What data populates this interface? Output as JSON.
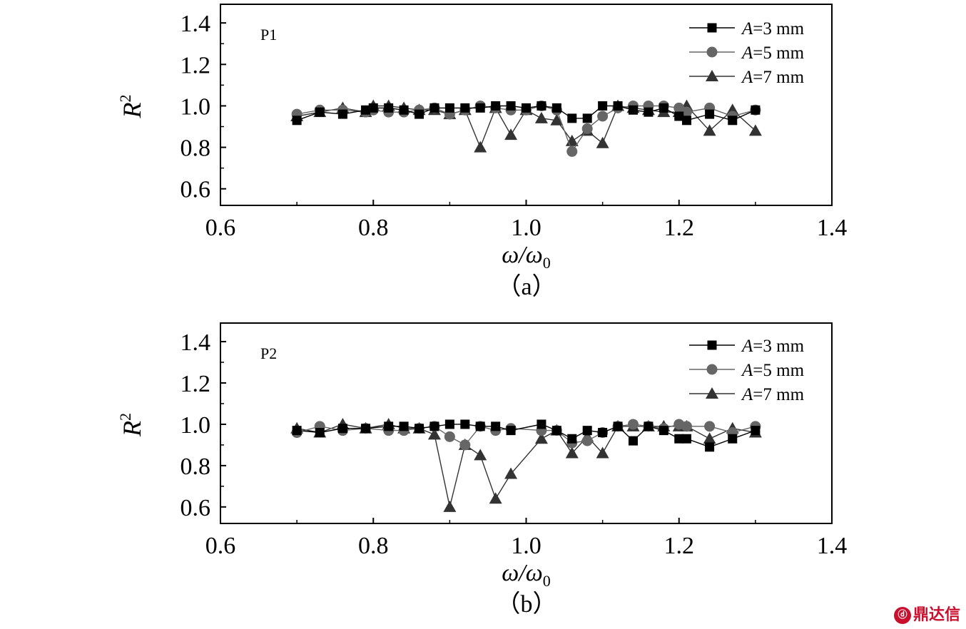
{
  "chart_data": [
    {
      "type": "line",
      "panel_label": "P1",
      "caption_open": "（",
      "caption_letter": "a",
      "caption_close": "）",
      "xlabel_main": "ω/ω",
      "xlabel_sub": "0",
      "ylabel_main": "R",
      "ylabel_sup": "2",
      "xlim": [
        0.6,
        1.4
      ],
      "ylim": [
        0.52,
        1.49
      ],
      "xticks": [
        0.6,
        0.8,
        1.0,
        1.2,
        1.4
      ],
      "xtick_labels": [
        "0.6",
        "0.8",
        "1.0",
        "1.2",
        "1.4"
      ],
      "yticks": [
        0.6,
        0.8,
        1.0,
        1.2,
        1.4
      ],
      "ytick_labels": [
        "0.6",
        "0.8",
        "1.0",
        "1.2",
        "1.4"
      ],
      "legend_position": "top-right",
      "series": [
        {
          "name_var": "A",
          "name_rest": "=3 mm",
          "marker": "square",
          "color": "#000000",
          "x": [
            0.7,
            0.73,
            0.76,
            0.79,
            0.8,
            0.82,
            0.84,
            0.86,
            0.88,
            0.9,
            0.92,
            0.94,
            0.96,
            0.98,
            1.0,
            1.02,
            1.04,
            1.06,
            1.08,
            1.1,
            1.12,
            1.14,
            1.16,
            1.18,
            1.2,
            1.21,
            1.24,
            1.27,
            1.3
          ],
          "y": [
            0.93,
            0.97,
            0.96,
            0.98,
            0.99,
            0.99,
            0.98,
            0.96,
            0.99,
            0.99,
            0.99,
            0.99,
            1.0,
            1.0,
            0.99,
            1.0,
            0.99,
            0.94,
            0.94,
            1.0,
            1.0,
            0.98,
            0.97,
            0.99,
            0.95,
            0.93,
            0.96,
            0.93,
            0.98
          ]
        },
        {
          "name_var": "A",
          "name_rest": "=5 mm",
          "marker": "circle",
          "color": "#666666",
          "x": [
            0.7,
            0.73,
            0.76,
            0.79,
            0.8,
            0.82,
            0.84,
            0.86,
            0.88,
            0.9,
            0.92,
            0.94,
            0.96,
            0.98,
            1.0,
            1.02,
            1.04,
            1.06,
            1.08,
            1.1,
            1.12,
            1.14,
            1.16,
            1.18,
            1.2,
            1.21,
            1.24,
            1.27,
            1.3
          ],
          "y": [
            0.96,
            0.98,
            0.98,
            0.97,
            0.98,
            0.97,
            0.97,
            0.98,
            0.99,
            0.96,
            0.98,
            1.0,
            0.99,
            0.98,
            0.98,
            1.0,
            0.98,
            0.78,
            0.89,
            0.95,
            0.99,
            1.0,
            1.0,
            1.0,
            0.99,
            0.97,
            0.99,
            0.95,
            0.98
          ]
        },
        {
          "name_var": "A",
          "name_rest": "=7 mm",
          "marker": "triangle",
          "color": "#333333",
          "x": [
            0.7,
            0.73,
            0.76,
            0.79,
            0.8,
            0.82,
            0.84,
            0.86,
            0.88,
            0.9,
            0.92,
            0.94,
            0.96,
            0.98,
            1.0,
            1.02,
            1.04,
            1.06,
            1.08,
            1.1,
            1.12,
            1.14,
            1.16,
            1.18,
            1.2,
            1.21,
            1.24,
            1.27,
            1.3
          ],
          "y": [
            0.95,
            0.97,
            0.99,
            0.97,
            1.0,
            1.0,
            0.99,
            0.98,
            0.98,
            0.96,
            0.98,
            0.8,
            0.99,
            0.86,
            0.98,
            0.94,
            0.93,
            0.83,
            0.88,
            0.82,
            1.0,
            0.99,
            0.98,
            0.97,
            0.97,
            1.0,
            0.88,
            0.98,
            0.88
          ]
        }
      ]
    },
    {
      "type": "line",
      "panel_label": "P2",
      "caption_open": "（",
      "caption_letter": "b",
      "caption_close": "）",
      "xlabel_main": "ω/ω",
      "xlabel_sub": "0",
      "ylabel_main": "R",
      "ylabel_sup": "2",
      "xlim": [
        0.6,
        1.4
      ],
      "ylim": [
        0.52,
        1.49
      ],
      "xticks": [
        0.6,
        0.8,
        1.0,
        1.2,
        1.4
      ],
      "xtick_labels": [
        "0.6",
        "0.8",
        "1.0",
        "1.2",
        "1.4"
      ],
      "yticks": [
        0.6,
        0.8,
        1.0,
        1.2,
        1.4
      ],
      "ytick_labels": [
        "0.6",
        "0.8",
        "1.0",
        "1.2",
        "1.4"
      ],
      "legend_position": "top-right",
      "series": [
        {
          "name_var": "A",
          "name_rest": "=3 mm",
          "marker": "square",
          "color": "#000000",
          "x": [
            0.7,
            0.73,
            0.76,
            0.79,
            0.82,
            0.84,
            0.86,
            0.88,
            0.9,
            0.92,
            0.94,
            0.96,
            0.98,
            1.02,
            1.04,
            1.06,
            1.08,
            1.1,
            1.12,
            1.14,
            1.16,
            1.18,
            1.2,
            1.21,
            1.24,
            1.27,
            1.3
          ],
          "y": [
            0.97,
            0.96,
            0.98,
            0.98,
            0.99,
            0.99,
            0.98,
            0.99,
            1.0,
            1.0,
            0.99,
            0.99,
            0.97,
            1.0,
            0.97,
            0.93,
            0.97,
            0.96,
            0.99,
            0.92,
            0.99,
            0.97,
            0.93,
            0.93,
            0.89,
            0.93,
            0.97
          ]
        },
        {
          "name_var": "A",
          "name_rest": "=5 mm",
          "marker": "circle",
          "color": "#666666",
          "x": [
            0.7,
            0.73,
            0.76,
            0.79,
            0.82,
            0.84,
            0.86,
            0.88,
            0.9,
            0.92,
            0.94,
            0.96,
            0.98,
            1.02,
            1.04,
            1.06,
            1.08,
            1.1,
            1.12,
            1.14,
            1.16,
            1.18,
            1.2,
            1.21,
            1.24,
            1.27,
            1.3
          ],
          "y": [
            0.96,
            0.99,
            0.97,
            0.98,
            0.97,
            0.97,
            0.98,
            0.99,
            0.94,
            0.9,
            0.99,
            0.97,
            0.98,
            0.97,
            0.97,
            0.91,
            0.92,
            0.96,
            0.99,
            1.0,
            0.99,
            0.98,
            1.0,
            0.99,
            0.99,
            0.96,
            0.99
          ]
        },
        {
          "name_var": "A",
          "name_rest": "=7 mm",
          "marker": "triangle",
          "color": "#333333",
          "x": [
            0.7,
            0.73,
            0.76,
            0.79,
            0.82,
            0.84,
            0.86,
            0.88,
            0.9,
            0.92,
            0.94,
            0.96,
            0.98,
            1.02,
            1.04,
            1.06,
            1.08,
            1.1,
            1.12,
            1.14,
            1.16,
            1.18,
            1.2,
            1.21,
            1.24,
            1.27,
            1.3
          ],
          "y": [
            0.98,
            0.96,
            1.0,
            0.98,
            1.0,
            0.98,
            0.98,
            0.95,
            0.6,
            0.9,
            0.85,
            0.64,
            0.76,
            0.93,
            0.97,
            0.86,
            0.94,
            0.86,
            0.99,
            0.99,
            0.99,
            0.99,
            0.99,
            0.99,
            0.93,
            0.98,
            0.96
          ]
        }
      ]
    }
  ],
  "watermark": {
    "logo_text": "ⓓ",
    "text": "鼎达信"
  }
}
